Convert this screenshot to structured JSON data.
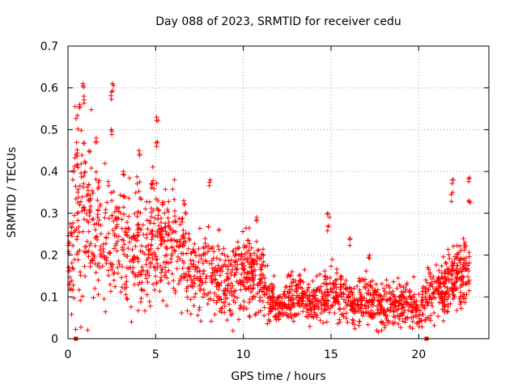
{
  "chart_data": {
    "type": "scatter",
    "title": "Day 088 of 2023, SRMTID for receiver cedu",
    "xlabel": "GPS time / hours",
    "ylabel": "SRMTID / TECUs",
    "xlim": [
      0,
      24
    ],
    "ylim": [
      0,
      0.7
    ],
    "x_ticks": [
      0,
      5,
      10,
      15,
      20
    ],
    "x_tick_labels": [
      "0",
      "5",
      "10",
      "15",
      "20"
    ],
    "y_ticks": [
      0,
      0.1,
      0.2,
      0.3,
      0.4,
      0.5,
      0.6,
      0.7
    ],
    "y_tick_labels": [
      "0",
      "0.1",
      "0.2",
      "0.3",
      "0.4",
      "0.5",
      "0.6",
      "0.7"
    ],
    "grid": true,
    "marker": "+",
    "color": "#ff0000",
    "data_gap_markers_x": [
      0.45,
      20.45
    ],
    "envelope": {
      "x": [
        0.0,
        0.5,
        1.0,
        1.5,
        2.0,
        2.5,
        3.0,
        3.5,
        4.0,
        4.5,
        5.0,
        5.5,
        6.0,
        6.5,
        7.0,
        7.5,
        8.0,
        8.5,
        9.0,
        9.5,
        10.0,
        10.5,
        11.0,
        11.5,
        12.0,
        12.5,
        13.0,
        13.5,
        14.0,
        14.5,
        15.0,
        15.5,
        16.0,
        16.5,
        17.0,
        17.5,
        18.0,
        18.5,
        19.0,
        19.5,
        20.0,
        20.5,
        21.0,
        21.5,
        22.0,
        22.5,
        23.0
      ],
      "mean": [
        0.15,
        0.3,
        0.3,
        0.27,
        0.24,
        0.25,
        0.22,
        0.21,
        0.2,
        0.22,
        0.22,
        0.24,
        0.23,
        0.22,
        0.16,
        0.15,
        0.17,
        0.16,
        0.14,
        0.14,
        0.17,
        0.15,
        0.14,
        0.09,
        0.09,
        0.09,
        0.1,
        0.1,
        0.09,
        0.09,
        0.12,
        0.1,
        0.08,
        0.08,
        0.09,
        0.08,
        0.08,
        0.08,
        0.09,
        0.08,
        0.07,
        0.11,
        0.12,
        0.12,
        0.15,
        0.15,
        0.16
      ],
      "spread": [
        0.05,
        0.13,
        0.13,
        0.1,
        0.09,
        0.09,
        0.08,
        0.08,
        0.08,
        0.07,
        0.08,
        0.08,
        0.07,
        0.07,
        0.05,
        0.05,
        0.06,
        0.05,
        0.05,
        0.05,
        0.05,
        0.05,
        0.05,
        0.03,
        0.03,
        0.03,
        0.03,
        0.03,
        0.03,
        0.03,
        0.04,
        0.03,
        0.03,
        0.03,
        0.03,
        0.03,
        0.03,
        0.03,
        0.03,
        0.03,
        0.03,
        0.03,
        0.04,
        0.04,
        0.04,
        0.04,
        0.05
      ],
      "points_per_hour": 90,
      "x_end": 22.9
    },
    "spikes": [
      {
        "x": 0.9,
        "y": 0.61
      },
      {
        "x": 0.95,
        "y": 0.58
      },
      {
        "x": 0.7,
        "y": 0.56
      },
      {
        "x": 2.55,
        "y": 0.61
      },
      {
        "x": 2.5,
        "y": 0.59
      },
      {
        "x": 2.45,
        "y": 0.5
      },
      {
        "x": 5.1,
        "y": 0.53
      },
      {
        "x": 5.05,
        "y": 0.47
      },
      {
        "x": 4.1,
        "y": 0.45
      },
      {
        "x": 6.6,
        "y": 0.33
      },
      {
        "x": 8.1,
        "y": 0.38
      },
      {
        "x": 10.8,
        "y": 0.29
      },
      {
        "x": 14.85,
        "y": 0.3
      },
      {
        "x": 14.8,
        "y": 0.27
      },
      {
        "x": 16.1,
        "y": 0.24
      },
      {
        "x": 17.2,
        "y": 0.2
      },
      {
        "x": 21.95,
        "y": 0.38
      },
      {
        "x": 22.85,
        "y": 0.385
      },
      {
        "x": 22.9,
        "y": 0.33
      },
      {
        "x": 22.6,
        "y": 0.23
      },
      {
        "x": 21.9,
        "y": 0.35
      },
      {
        "x": 4.8,
        "y": 0.37
      },
      {
        "x": 3.2,
        "y": 0.4
      },
      {
        "x": 1.6,
        "y": 0.48
      }
    ]
  }
}
